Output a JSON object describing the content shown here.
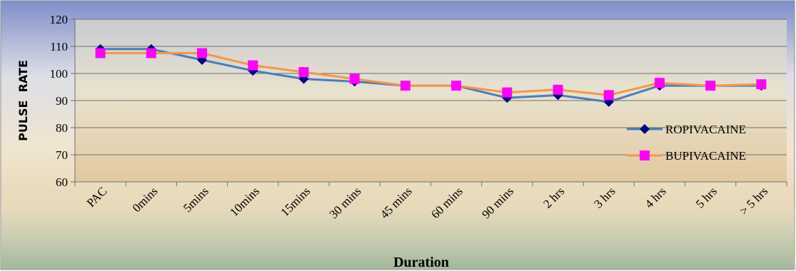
{
  "chart_data": {
    "type": "line",
    "title": "",
    "xlabel": "Duration",
    "ylabel": "PULSE  RATE",
    "ylim": [
      60,
      120
    ],
    "ytick_step": 10,
    "grid": true,
    "legend_position": "right",
    "categories": [
      "PAC",
      "0mins",
      "5mins",
      "10mins",
      "15mins",
      "30 mins",
      "45 mins",
      "60 mins",
      "90 mins",
      "2 hrs",
      "3 hrs",
      "4 hrs",
      "5 hrs",
      "> 5 hrs"
    ],
    "series": [
      {
        "name": "ROPIVACAINE",
        "color": "#4a7ebb",
        "marker": "diamond",
        "marker_color": "#000080",
        "values": [
          109,
          109,
          105,
          101,
          98,
          97,
          95.5,
          95.5,
          91,
          92,
          89.5,
          95.5,
          95.5,
          95.5
        ]
      },
      {
        "name": "BUPIVACAINE",
        "color": "#f79646",
        "marker": "square",
        "marker_color": "#ff00ff",
        "values": [
          107.5,
          107.5,
          107.5,
          103,
          100.5,
          98,
          95.5,
          95.5,
          93,
          94,
          92,
          96.5,
          95.5,
          96
        ]
      }
    ]
  }
}
